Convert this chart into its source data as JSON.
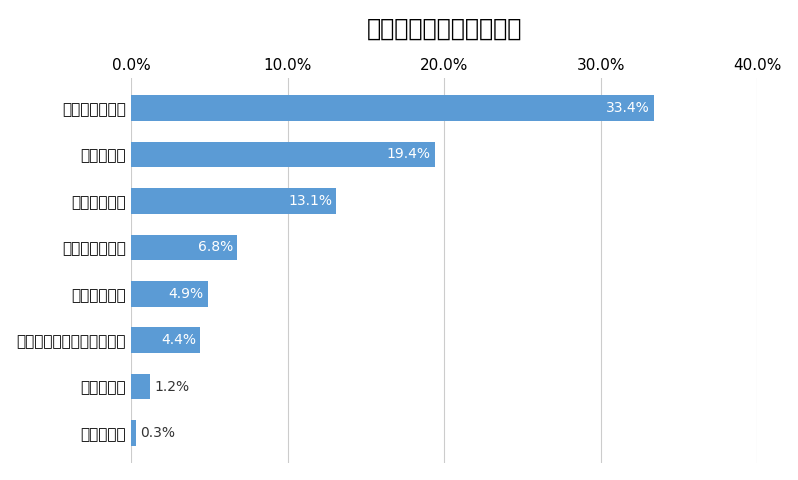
{
  "title": "内装・間取りの優先事項",
  "categories": [
    "ロフトつき",
    "玄関の広さ",
    "好みのインテリアテイスト",
    "追い炊き風呂",
    "キッチンの広さ",
    "好みの間取り",
    "部屋の広さ",
    "バス・トイレ別"
  ],
  "values": [
    0.3,
    1.2,
    4.4,
    4.9,
    6.8,
    13.1,
    19.4,
    33.4
  ],
  "bar_color": "#5B9BD5",
  "label_inside_color": "#FFFFFF",
  "label_outside_color": "#333333",
  "title_fontsize": 17,
  "axis_label_fontsize": 11,
  "bar_label_fontsize": 10,
  "xlim": [
    0,
    40
  ],
  "xticks": [
    0,
    10,
    20,
    30,
    40
  ],
  "xtick_labels": [
    "0.0%",
    "10.0%",
    "20.0%",
    "30.0%",
    "40.0%"
  ],
  "background_color": "#FFFFFF",
  "grid_color": "#CCCCCC",
  "inside_threshold": 2.5
}
